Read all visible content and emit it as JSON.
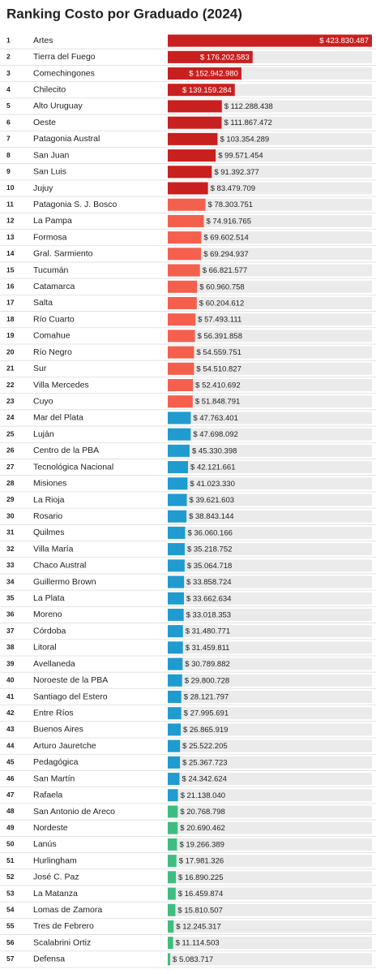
{
  "chart_data": {
    "type": "bar",
    "orientation": "horizontal",
    "title": "Ranking Costo por Graduado (2024)",
    "ranks": [
      1,
      2,
      3,
      4,
      5,
      6,
      7,
      8,
      9,
      10,
      11,
      12,
      13,
      14,
      15,
      16,
      17,
      18,
      19,
      20,
      21,
      22,
      23,
      24,
      25,
      26,
      27,
      28,
      29,
      30,
      31,
      32,
      33,
      34,
      35,
      36,
      37,
      38,
      39,
      40,
      41,
      42,
      43,
      44,
      45,
      46,
      47,
      48,
      49,
      50,
      51,
      52,
      53,
      54,
      55,
      56,
      57
    ],
    "categories": [
      "Artes",
      "Tierra del Fuego",
      "Comechingones",
      "Chilecito",
      "Alto Uruguay",
      "Oeste",
      "Patagonia Austral",
      "San Juan",
      "San Luis",
      "Jujuy",
      "Patagonia S. J. Bosco",
      "La Pampa",
      "Formosa",
      "Gral. Sarmiento",
      "Tucumán",
      "Catamarca",
      "Salta",
      "Río Cuarto",
      "Comahue",
      "Río Negro",
      "Sur",
      "Villa Mercedes",
      "Cuyo",
      "Mar del Plata",
      "Luján",
      "Centro de la PBA",
      "Tecnológica Nacional",
      "Misiones",
      "La Rioja",
      "Rosario",
      "Quilmes",
      "Villa María",
      "Chaco Austral",
      "Guillermo Brown",
      "La Plata",
      "Moreno",
      "Córdoba",
      "Litoral",
      "Avellaneda",
      "Noroeste de la PBA",
      "Santiago del Estero",
      "Entre Ríos",
      "Buenos Aires",
      "Arturo Jauretche",
      "Pedagógica",
      "San Martín",
      "Rafaela",
      "San Antonio de Areco",
      "Nordeste",
      "Lanús",
      "Hurlingham",
      "José C. Paz",
      "La Matanza",
      "Lomas de Zamora",
      "Tres de Febrero",
      "Scalabrini Ortiz",
      "Defensa"
    ],
    "values": [
      423830487,
      176202583,
      152942980,
      139159284,
      112288438,
      111867472,
      103354289,
      99571454,
      91392377,
      83479709,
      78303751,
      74916765,
      69602514,
      69294937,
      66821577,
      60960758,
      60204612,
      57493111,
      56391858,
      54559751,
      54510827,
      52410692,
      51848791,
      47763401,
      47698092,
      45330398,
      42121661,
      41023330,
      39621603,
      38843144,
      36060166,
      35218752,
      35064718,
      33858724,
      33662634,
      33018353,
      31480771,
      31459811,
      30789882,
      29800728,
      28121797,
      27995691,
      26865919,
      25522205,
      25367723,
      24342624,
      21138040,
      20768798,
      20690462,
      19266389,
      17981326,
      16890225,
      16459874,
      15810507,
      12245317,
      11114503,
      5083717
    ],
    "value_labels": [
      "$ 423.830.487",
      "$ 176.202.583",
      "$ 152.942.980",
      "$ 139.159.284",
      "$ 112.288.438",
      "$ 111.867.472",
      "$ 103.354.289",
      "$ 99.571.454",
      "$ 91.392.377",
      "$ 83.479.709",
      "$ 78.303.751",
      "$ 74.916.765",
      "$ 69.602.514",
      "$ 69.294.937",
      "$ 66.821.577",
      "$ 60.960.758",
      "$ 60.204.612",
      "$ 57.493.111",
      "$ 56.391.858",
      "$ 54.559.751",
      "$ 54.510.827",
      "$ 52.410.692",
      "$ 51.848.791",
      "$ 47.763.401",
      "$ 47.698.092",
      "$ 45.330.398",
      "$ 42.121.661",
      "$ 41.023.330",
      "$ 39.621.603",
      "$ 38.843.144",
      "$ 36.060.166",
      "$ 35.218.752",
      "$ 35.064.718",
      "$ 33.858.724",
      "$ 33.662.634",
      "$ 33.018.353",
      "$ 31.480.771",
      "$ 31.459.811",
      "$ 30.789.882",
      "$ 29.800.728",
      "$ 28.121.797",
      "$ 27.995.691",
      "$ 26.865.919",
      "$ 25.522.205",
      "$ 25.367.723",
      "$ 24.342.624",
      "$ 21.138.040",
      "$ 20.768.798",
      "$ 20.690.462",
      "$ 19.266.389",
      "$ 17.981.326",
      "$ 16.890.225",
      "$ 16.459.874",
      "$ 15.810.507",
      "$ 12.245.317",
      "$ 11.114.503",
      "$ 5.083.717"
    ],
    "colors": [
      "#c8201f",
      "#c8201f",
      "#c8201f",
      "#c8201f",
      "#c8201f",
      "#c8201f",
      "#c8201f",
      "#c8201f",
      "#c8201f",
      "#c8201f",
      "#f55f4d",
      "#f55f4d",
      "#f55f4d",
      "#f55f4d",
      "#f55f4d",
      "#f55f4d",
      "#f55f4d",
      "#f55f4d",
      "#f55f4d",
      "#f55f4d",
      "#f55f4d",
      "#f55f4d",
      "#f55f4d",
      "#1f9bcf",
      "#1f9bcf",
      "#1f9bcf",
      "#1f9bcf",
      "#1f9bcf",
      "#1f9bcf",
      "#1f9bcf",
      "#1f9bcf",
      "#1f9bcf",
      "#1f9bcf",
      "#1f9bcf",
      "#1f9bcf",
      "#1f9bcf",
      "#1f9bcf",
      "#1f9bcf",
      "#1f9bcf",
      "#1f9bcf",
      "#1f9bcf",
      "#1f9bcf",
      "#1f9bcf",
      "#1f9bcf",
      "#1f9bcf",
      "#1f9bcf",
      "#1f9bcf",
      "#3fbd80",
      "#3fbd80",
      "#3fbd80",
      "#3fbd80",
      "#3fbd80",
      "#3fbd80",
      "#3fbd80",
      "#3fbd80",
      "#3fbd80",
      "#3fbd80"
    ],
    "xlim": [
      0,
      423830487
    ]
  }
}
